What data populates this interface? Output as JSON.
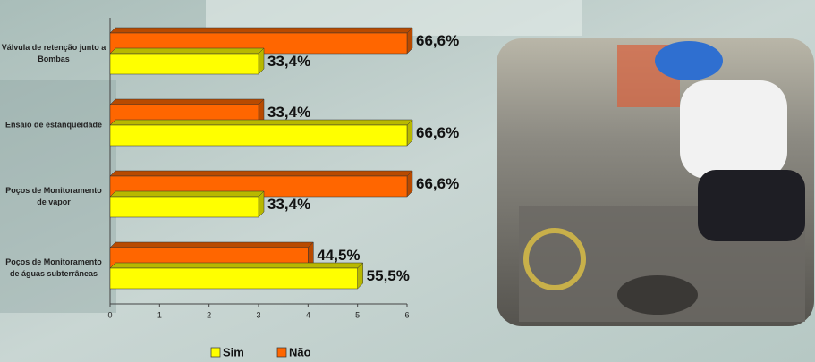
{
  "chart_data": {
    "type": "bar",
    "orientation": "horizontal",
    "categories": [
      "Válvula de retenção junto a Bombas",
      "Ensaio de estanqueidade",
      "Poços de Monitoramento de vapor",
      "Poços de Monitoramento de águas subterrâneas"
    ],
    "series": [
      {
        "name": "Não",
        "color": "#ff6600",
        "values": [
          6,
          3,
          6,
          4
        ],
        "value_labels": [
          "66,6%",
          "33,4%",
          "66,6%",
          "44,5%"
        ]
      },
      {
        "name": "Sim",
        "color": "#ffff00",
        "values": [
          3,
          6,
          3,
          5
        ],
        "value_labels": [
          "33,4%",
          "66,6%",
          "33,4%",
          "55,5%"
        ]
      }
    ],
    "legend_order": [
      "Sim",
      "Não"
    ],
    "xlim": [
      0,
      6
    ],
    "xticks": [
      0,
      1,
      2,
      3,
      4,
      5,
      6
    ],
    "grid": false
  }
}
